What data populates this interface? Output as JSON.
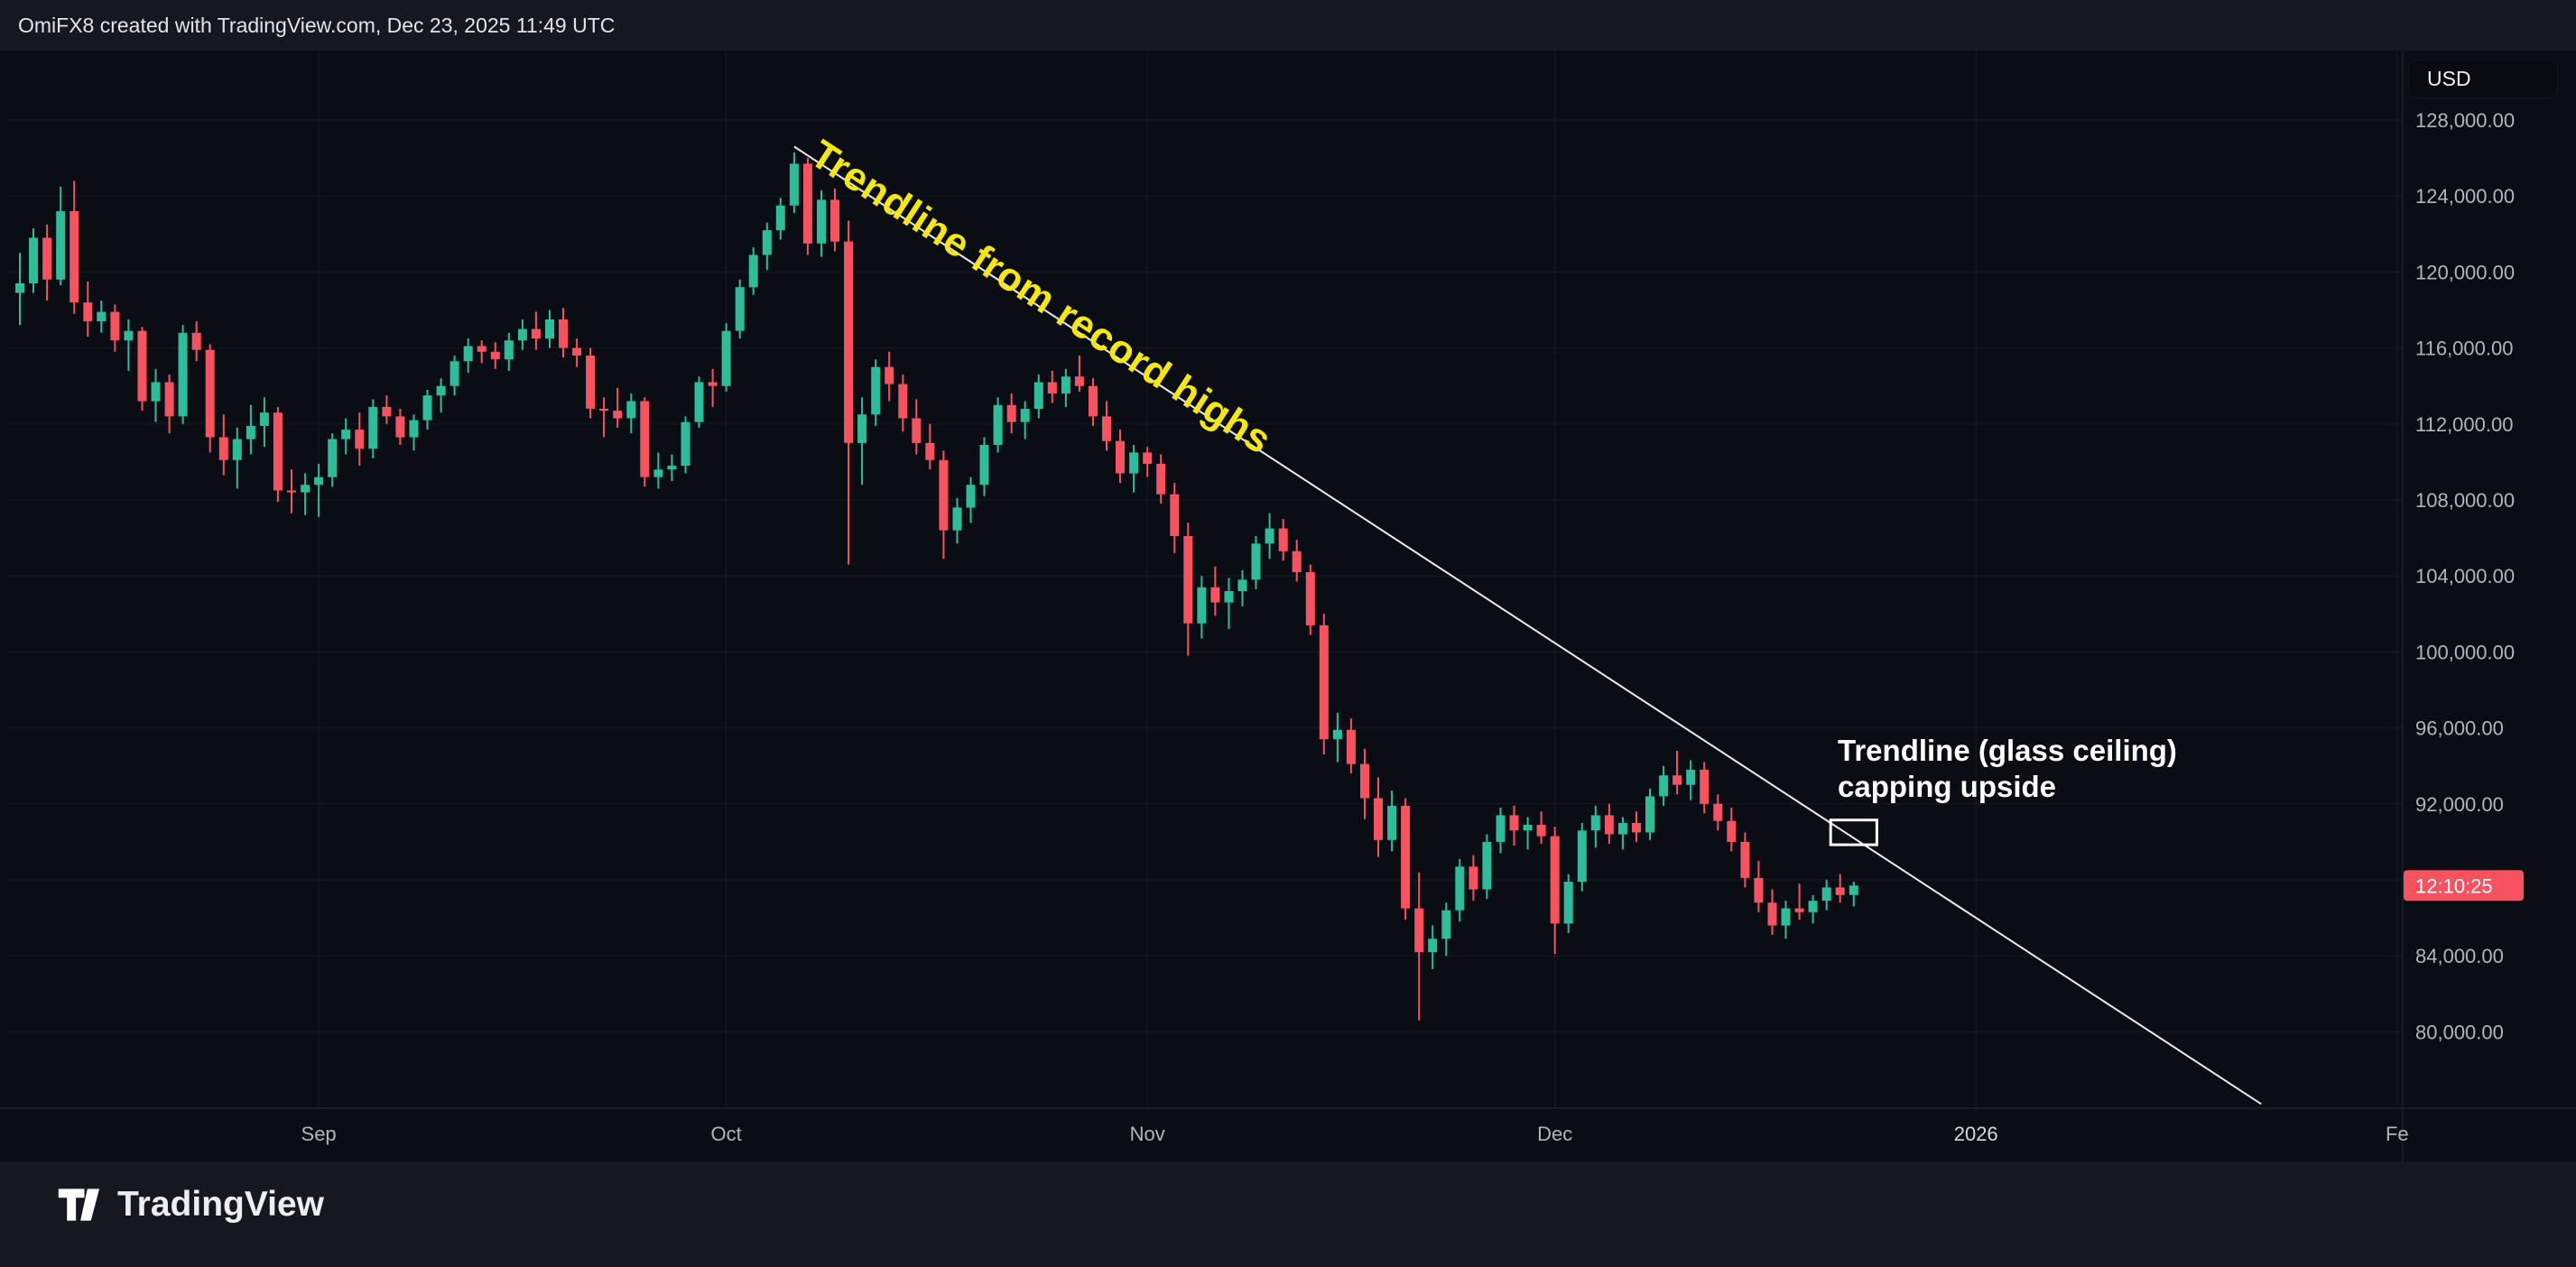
{
  "header": {
    "attribution": "OmiFX8 created with TradingView.com, Dec 23, 2025 11:49 UTC",
    "currency_label": "USD"
  },
  "footer": {
    "brand": "TradingView"
  },
  "annotations": {
    "trendline_label": "Trendline from record highs",
    "ceiling_line1": "Trendline (glass ceiling)",
    "ceiling_line2": "capping upside",
    "countdown": "12:10:25"
  },
  "colors": {
    "background": "#16181F",
    "chart_background": "#0B0D14",
    "up": "#2EBD9A",
    "down": "#F6525F",
    "axis_text": "#B2B5BE",
    "grid": "rgba(255,255,255,0.055)",
    "trendline": "#E8ECF0",
    "annotation_yellow": "#F6E70C",
    "countdown_bg": "#F7525F",
    "separator": "#262B36"
  },
  "chart_data": {
    "type": "candlestick",
    "instrument_currency": "USD",
    "interval": "daily",
    "date_range": "2025-08-10 to 2025-12-23",
    "price_unit": "thousand USD",
    "y_axis": {
      "max": 128000,
      "min": 80000,
      "step": 4000,
      "hidden_labels": [
        88000
      ],
      "format": "#,##0.00"
    },
    "x_axis": {
      "labels": [
        {
          "text": "Sep",
          "index": 22
        },
        {
          "text": "Oct",
          "index": 52
        },
        {
          "text": "Nov",
          "index": 83
        },
        {
          "text": "Dec",
          "index": 113
        },
        {
          "text": "2026",
          "index": 144,
          "emphasis": true
        },
        {
          "text": "Fe",
          "index": 175
        }
      ]
    },
    "trendline": {
      "from_index": 57,
      "from_price_k": 126.6,
      "to_index": 165,
      "to_price_k": 76.2
    },
    "ceiling_box": {
      "index": 135,
      "price_top_k": 91.15,
      "price_bottom_k": 89.85,
      "width_bars": 3.4
    },
    "countdown_price_k": 87.7,
    "candles": [
      [
        118.9,
        121.0,
        117.2,
        119.4
      ],
      [
        119.4,
        122.3,
        118.9,
        121.8
      ],
      [
        121.8,
        122.5,
        118.5,
        119.6
      ],
      [
        119.6,
        124.5,
        119.3,
        123.2
      ],
      [
        123.2,
        124.8,
        117.8,
        118.4
      ],
      [
        118.4,
        119.5,
        116.6,
        117.4
      ],
      [
        117.4,
        118.5,
        116.8,
        117.9
      ],
      [
        117.9,
        118.3,
        115.8,
        116.4
      ],
      [
        116.4,
        117.5,
        114.8,
        116.9
      ],
      [
        116.9,
        117.1,
        112.7,
        113.2
      ],
      [
        113.2,
        114.9,
        112.1,
        114.2
      ],
      [
        114.2,
        114.6,
        111.5,
        112.4
      ],
      [
        112.4,
        117.2,
        112.0,
        116.8
      ],
      [
        116.8,
        117.4,
        115.3,
        115.9
      ],
      [
        115.9,
        116.2,
        110.5,
        111.3
      ],
      [
        111.3,
        112.5,
        109.3,
        110.1
      ],
      [
        110.1,
        111.8,
        108.6,
        111.2
      ],
      [
        111.2,
        113.0,
        110.4,
        111.9
      ],
      [
        111.9,
        113.4,
        110.8,
        112.6
      ],
      [
        112.6,
        112.9,
        107.9,
        108.5
      ],
      [
        108.5,
        109.6,
        107.3,
        108.4
      ],
      [
        108.4,
        109.4,
        107.2,
        108.8
      ],
      [
        108.8,
        109.9,
        107.1,
        109.2
      ],
      [
        109.2,
        111.5,
        108.7,
        111.2
      ],
      [
        111.2,
        112.3,
        110.4,
        111.7
      ],
      [
        111.7,
        112.6,
        109.8,
        110.7
      ],
      [
        110.7,
        113.3,
        110.2,
        112.9
      ],
      [
        112.9,
        113.5,
        112.0,
        112.4
      ],
      [
        112.4,
        112.8,
        110.9,
        111.3
      ],
      [
        111.3,
        112.5,
        110.6,
        112.2
      ],
      [
        112.2,
        113.8,
        111.7,
        113.5
      ],
      [
        113.5,
        114.4,
        112.6,
        114.0
      ],
      [
        114.0,
        115.6,
        113.5,
        115.3
      ],
      [
        115.3,
        116.5,
        114.7,
        116.1
      ],
      [
        116.1,
        116.4,
        115.2,
        115.8
      ],
      [
        115.8,
        116.3,
        114.9,
        115.4
      ],
      [
        115.4,
        116.8,
        114.8,
        116.4
      ],
      [
        116.4,
        117.5,
        115.9,
        117.0
      ],
      [
        117.0,
        117.9,
        115.9,
        116.5
      ],
      [
        116.5,
        118.0,
        116.0,
        117.5
      ],
      [
        117.5,
        118.1,
        115.5,
        116.0
      ],
      [
        116.0,
        116.5,
        115.0,
        115.6
      ],
      [
        115.6,
        116.0,
        112.3,
        112.8
      ],
      [
        112.8,
        113.4,
        111.3,
        112.7
      ],
      [
        112.7,
        113.9,
        111.8,
        112.3
      ],
      [
        112.3,
        113.6,
        111.5,
        113.2
      ],
      [
        113.2,
        113.4,
        108.7,
        109.2
      ],
      [
        109.2,
        110.5,
        108.6,
        109.6
      ],
      [
        109.6,
        110.4,
        109.0,
        109.8
      ],
      [
        109.8,
        112.4,
        109.4,
        112.1
      ],
      [
        112.1,
        114.5,
        111.8,
        114.2
      ],
      [
        114.2,
        114.9,
        112.9,
        114.0
      ],
      [
        114.0,
        117.3,
        113.7,
        116.9
      ],
      [
        116.9,
        119.6,
        116.5,
        119.2
      ],
      [
        119.2,
        121.3,
        118.8,
        120.9
      ],
      [
        120.9,
        122.6,
        120.1,
        122.2
      ],
      [
        122.2,
        123.9,
        121.7,
        123.5
      ],
      [
        123.5,
        126.3,
        123.1,
        125.7
      ],
      [
        125.7,
        126.0,
        120.9,
        121.5
      ],
      [
        121.5,
        124.3,
        120.8,
        123.8
      ],
      [
        123.8,
        124.4,
        121.1,
        121.6
      ],
      [
        121.6,
        122.7,
        104.6,
        111.0
      ],
      [
        111.0,
        113.4,
        108.8,
        112.5
      ],
      [
        112.5,
        115.4,
        111.9,
        115.0
      ],
      [
        115.0,
        115.8,
        113.2,
        114.1
      ],
      [
        114.1,
        114.6,
        111.6,
        112.3
      ],
      [
        112.3,
        113.3,
        110.4,
        111.0
      ],
      [
        111.0,
        112.0,
        109.6,
        110.1
      ],
      [
        110.1,
        110.6,
        104.9,
        106.4
      ],
      [
        106.4,
        108.1,
        105.7,
        107.6
      ],
      [
        107.6,
        109.2,
        106.8,
        108.8
      ],
      [
        108.8,
        111.3,
        108.2,
        110.9
      ],
      [
        110.9,
        113.4,
        110.5,
        113.0
      ],
      [
        113.0,
        113.6,
        111.5,
        112.1
      ],
      [
        112.1,
        113.2,
        111.2,
        112.8
      ],
      [
        112.8,
        114.6,
        112.3,
        114.2
      ],
      [
        114.2,
        114.8,
        113.1,
        113.6
      ],
      [
        113.6,
        114.9,
        112.9,
        114.5
      ],
      [
        114.5,
        115.6,
        113.7,
        114.0
      ],
      [
        114.0,
        114.4,
        111.9,
        112.4
      ],
      [
        112.4,
        113.2,
        110.6,
        111.1
      ],
      [
        111.1,
        111.7,
        108.9,
        109.4
      ],
      [
        109.4,
        110.9,
        108.4,
        110.5
      ],
      [
        110.5,
        110.8,
        109.2,
        109.9
      ],
      [
        109.9,
        110.4,
        107.8,
        108.3
      ],
      [
        108.3,
        108.9,
        105.2,
        106.1
      ],
      [
        106.1,
        106.8,
        99.8,
        101.5
      ],
      [
        101.5,
        104.0,
        100.7,
        103.4
      ],
      [
        103.4,
        104.5,
        101.9,
        102.6
      ],
      [
        102.6,
        103.9,
        101.2,
        103.2
      ],
      [
        103.2,
        104.3,
        102.4,
        103.8
      ],
      [
        103.8,
        106.1,
        103.3,
        105.7
      ],
      [
        105.7,
        107.3,
        104.9,
        106.5
      ],
      [
        106.5,
        107.0,
        104.8,
        105.3
      ],
      [
        105.3,
        105.9,
        103.7,
        104.2
      ],
      [
        104.2,
        104.6,
        100.9,
        101.4
      ],
      [
        101.4,
        102.0,
        94.6,
        95.4
      ],
      [
        95.4,
        96.8,
        94.2,
        95.9
      ],
      [
        95.9,
        96.5,
        93.6,
        94.1
      ],
      [
        94.1,
        94.9,
        91.2,
        92.3
      ],
      [
        92.3,
        93.4,
        89.2,
        90.1
      ],
      [
        90.1,
        92.7,
        89.5,
        91.9
      ],
      [
        91.9,
        92.3,
        85.9,
        86.5
      ],
      [
        86.5,
        88.4,
        80.6,
        84.2
      ],
      [
        84.2,
        85.6,
        83.3,
        84.9
      ],
      [
        84.9,
        86.8,
        84.0,
        86.4
      ],
      [
        86.4,
        89.1,
        85.8,
        88.7
      ],
      [
        88.7,
        89.3,
        86.9,
        87.5
      ],
      [
        87.5,
        90.4,
        87.0,
        90.0
      ],
      [
        90.0,
        91.8,
        89.4,
        91.4
      ],
      [
        91.4,
        91.9,
        89.8,
        90.6
      ],
      [
        90.6,
        91.3,
        89.6,
        90.9
      ],
      [
        90.9,
        91.6,
        89.9,
        90.3
      ],
      [
        90.3,
        90.8,
        84.1,
        85.7
      ],
      [
        85.7,
        88.3,
        85.2,
        87.9
      ],
      [
        87.9,
        91.0,
        87.4,
        90.6
      ],
      [
        90.6,
        91.9,
        89.7,
        91.4
      ],
      [
        91.4,
        92.0,
        89.9,
        90.4
      ],
      [
        90.4,
        91.3,
        89.6,
        91.0
      ],
      [
        91.0,
        91.6,
        90.0,
        90.5
      ],
      [
        90.5,
        92.8,
        90.1,
        92.4
      ],
      [
        92.4,
        94.0,
        91.9,
        93.5
      ],
      [
        93.5,
        94.8,
        92.5,
        93.0
      ],
      [
        93.0,
        94.3,
        92.2,
        93.8
      ],
      [
        93.8,
        94.2,
        91.5,
        92.0
      ],
      [
        92.0,
        92.5,
        90.6,
        91.1
      ],
      [
        91.1,
        91.8,
        89.5,
        90.0
      ],
      [
        90.0,
        90.5,
        87.6,
        88.1
      ],
      [
        88.1,
        89.0,
        86.3,
        86.8
      ],
      [
        86.8,
        87.5,
        85.1,
        85.6
      ],
      [
        85.6,
        86.9,
        84.9,
        86.5
      ],
      [
        86.5,
        87.8,
        85.9,
        86.3
      ],
      [
        86.3,
        87.2,
        85.7,
        86.9
      ],
      [
        86.9,
        88.0,
        86.4,
        87.6
      ],
      [
        87.6,
        88.3,
        86.8,
        87.2
      ],
      [
        87.2,
        87.9,
        86.6,
        87.7
      ]
    ]
  }
}
